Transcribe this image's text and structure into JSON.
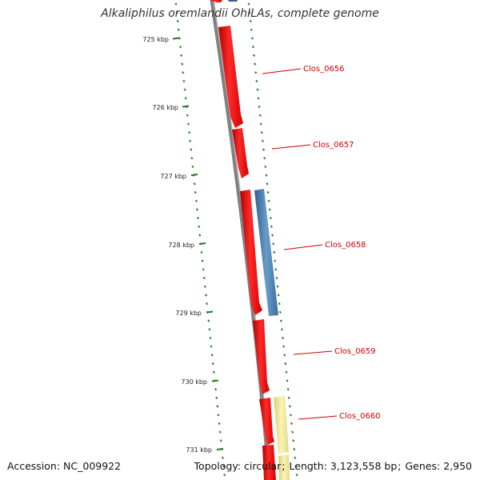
{
  "title": "Alkaliphilus oremlandii OhILAs, complete genome",
  "accession": {
    "label": "Accession:",
    "value": "NC_009922"
  },
  "summary": {
    "topology_label": "Topology:",
    "topology": "circular",
    "length_label": "Length:",
    "length": "3,123,558 bp",
    "genes_label": "Genes:",
    "genes": "2,950"
  },
  "ruler": {
    "unit": "kbp",
    "ticks": [
      725,
      726,
      727,
      728,
      729,
      730,
      731
    ]
  },
  "colors": {
    "backbone": "#777777",
    "tick": "#1f7a1f",
    "gene_forward_red": "#ee1111",
    "gene_blue": "#4a7fb0",
    "gene_yellow": "#f0e68c",
    "label": "#cc0000"
  },
  "genes": [
    {
      "id": "Clos_0656",
      "track": "inner",
      "color": "red"
    },
    {
      "id": "Clos_0657",
      "track": "inner",
      "color": "red"
    },
    {
      "id": "Clos_0658",
      "track": "outer",
      "color": "blue"
    },
    {
      "id": "Clos_0658-inner",
      "track": "inner",
      "color": "red"
    },
    {
      "id": "Clos_0659",
      "track": "inner",
      "color": "red"
    },
    {
      "id": "Clos_0660",
      "track": "outer",
      "color": "yellow"
    },
    {
      "id": "Clos_0660-inner",
      "track": "inner",
      "color": "red"
    }
  ],
  "labels": [
    "Clos_0656",
    "Clos_0657",
    "Clos_0658",
    "Clos_0659",
    "Clos_0660"
  ]
}
